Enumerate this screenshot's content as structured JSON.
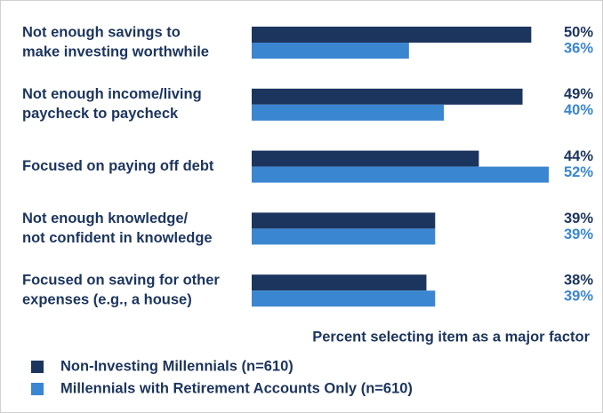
{
  "chart_data": {
    "type": "hbar",
    "categories": [
      [
        "Not enough savings to",
        "make investing worthwhile"
      ],
      [
        "Not enough income/living",
        "paycheck to paycheck"
      ],
      [
        "Focused on paying off debt"
      ],
      [
        "Not enough knowledge/",
        "not confident in knowledge"
      ],
      [
        "Focused on saving for other",
        "expenses (e.g., a house)"
      ]
    ],
    "series": [
      {
        "name": "Non-Investing Millennials (n=610)",
        "color": "#1c355e",
        "values": [
          50,
          49,
          44,
          39,
          38
        ],
        "value_labels": [
          "50%",
          "49%",
          "44%",
          "39%",
          "38%"
        ]
      },
      {
        "name": "Millennials with Retirement Accounts Only (n=610)",
        "color": "#3b86d1",
        "values": [
          36,
          40,
          52,
          39,
          39
        ],
        "value_labels": [
          "36%",
          "40%",
          "52%",
          "39%",
          "39%"
        ]
      }
    ],
    "xlabel": "Percent selecting item as a major factor",
    "xlim": [
      18,
      52
    ]
  }
}
